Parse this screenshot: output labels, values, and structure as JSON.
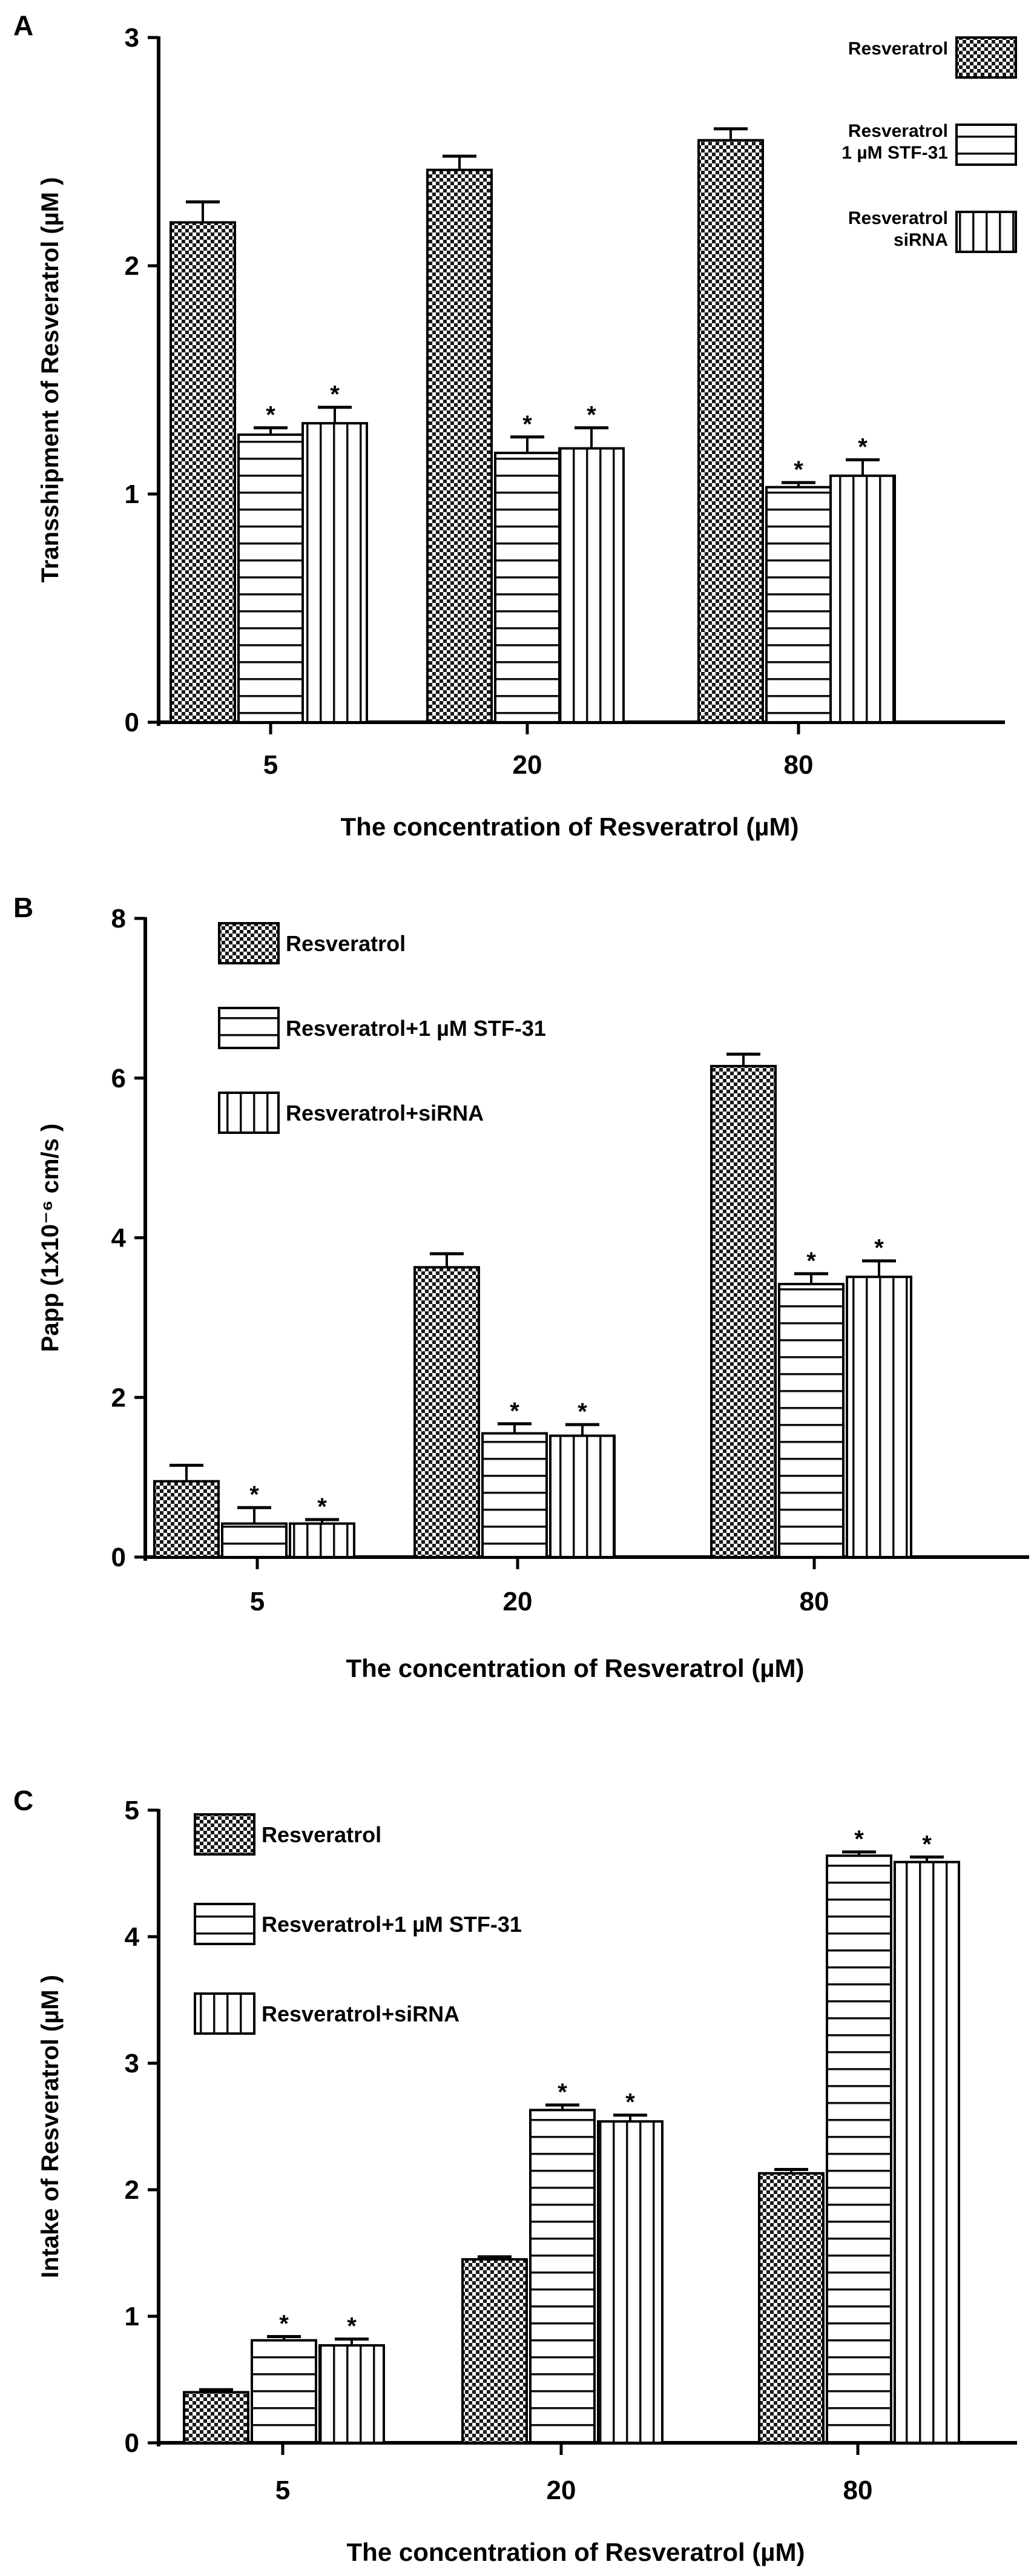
{
  "chart_data": [
    {
      "panel_label": "A",
      "type": "bar",
      "xlabel": "The concentration of Resveratrol (µM)",
      "ylabel": "Transshipment of Resveratrol (µM )",
      "ylim": [
        0,
        3
      ],
      "yticks": [
        "0",
        "1",
        "2",
        "3"
      ],
      "categories": [
        "5",
        "20",
        "80"
      ],
      "legend_position": "top-right",
      "series": [
        {
          "name": "Resveratrol",
          "legend": [
            "Resveratrol"
          ],
          "pattern": "checker",
          "values": [
            2.19,
            2.42,
            2.55
          ],
          "errors": [
            0.09,
            0.06,
            0.05
          ],
          "sig": [
            "",
            "",
            ""
          ]
        },
        {
          "name": "Resveratrol 1 µM STF-31",
          "legend": [
            "Resveratrol",
            "1 µM STF-31"
          ],
          "pattern": "hstripe",
          "values": [
            1.26,
            1.18,
            1.03
          ],
          "errors": [
            0.03,
            0.07,
            0.02
          ],
          "sig": [
            "*",
            "*",
            "*"
          ]
        },
        {
          "name": "Resveratrol siRNA",
          "legend": [
            "Resveratrol",
            "siRNA"
          ],
          "pattern": "vstripe",
          "values": [
            1.31,
            1.2,
            1.08
          ],
          "errors": [
            0.07,
            0.09,
            0.07
          ],
          "sig": [
            "*",
            "*",
            "*"
          ]
        }
      ]
    },
    {
      "panel_label": "B",
      "type": "bar",
      "xlabel": "The concentration of Resveratrol (µM)",
      "ylabel": "Papp (1x10⁻⁶ cm/s )",
      "ylim": [
        0,
        8
      ],
      "yticks": [
        "0",
        "2",
        "4",
        "6",
        "8"
      ],
      "categories": [
        "5",
        "20",
        "80"
      ],
      "legend_position": "top-left",
      "series": [
        {
          "name": "Resveratrol",
          "legend": [
            "Resveratrol"
          ],
          "pattern": "checker",
          "values": [
            0.95,
            3.63,
            6.15
          ],
          "errors": [
            0.2,
            0.17,
            0.15
          ],
          "sig": [
            "",
            "",
            ""
          ]
        },
        {
          "name": "Resveratrol+1 µM STF-31",
          "legend": [
            "Resveratrol+1 µM STF-31"
          ],
          "pattern": "hstripe",
          "values": [
            0.42,
            1.55,
            3.42
          ],
          "errors": [
            0.2,
            0.12,
            0.13
          ],
          "sig": [
            "*",
            "*",
            "*"
          ]
        },
        {
          "name": "Resveratrol+siRNA",
          "legend": [
            "Resveratrol+siRNA"
          ],
          "pattern": "vstripe",
          "values": [
            0.42,
            1.52,
            3.51
          ],
          "errors": [
            0.05,
            0.14,
            0.2
          ],
          "sig": [
            "*",
            "*",
            "*"
          ]
        }
      ]
    },
    {
      "panel_label": "C",
      "type": "bar",
      "xlabel": "The concentration of Resveratrol (µM)",
      "ylabel": "Intake of Resveratrol (µM )",
      "ylim": [
        0,
        5
      ],
      "yticks": [
        "0",
        "1",
        "2",
        "3",
        "4",
        "5"
      ],
      "categories": [
        "5",
        "20",
        "80"
      ],
      "legend_position": "top-left",
      "series": [
        {
          "name": "Resveratrol",
          "legend": [
            "Resveratrol"
          ],
          "pattern": "checker",
          "values": [
            0.4,
            1.45,
            2.13
          ],
          "errors": [
            0.02,
            0.02,
            0.03
          ],
          "sig": [
            "",
            "",
            ""
          ]
        },
        {
          "name": "Resveratrol+1 µM STF-31",
          "legend": [
            "Resveratrol+1 µM STF-31"
          ],
          "pattern": "hstripe",
          "values": [
            0.81,
            2.63,
            4.64
          ],
          "errors": [
            0.03,
            0.04,
            0.03
          ],
          "sig": [
            "*",
            "*",
            "*"
          ]
        },
        {
          "name": "Resveratrol+siRNA",
          "legend": [
            "Resveratrol+siRNA"
          ],
          "pattern": "vstripe",
          "values": [
            0.77,
            2.54,
            4.59
          ],
          "errors": [
            0.05,
            0.05,
            0.04
          ],
          "sig": [
            "*",
            "*",
            "*"
          ]
        }
      ]
    }
  ]
}
